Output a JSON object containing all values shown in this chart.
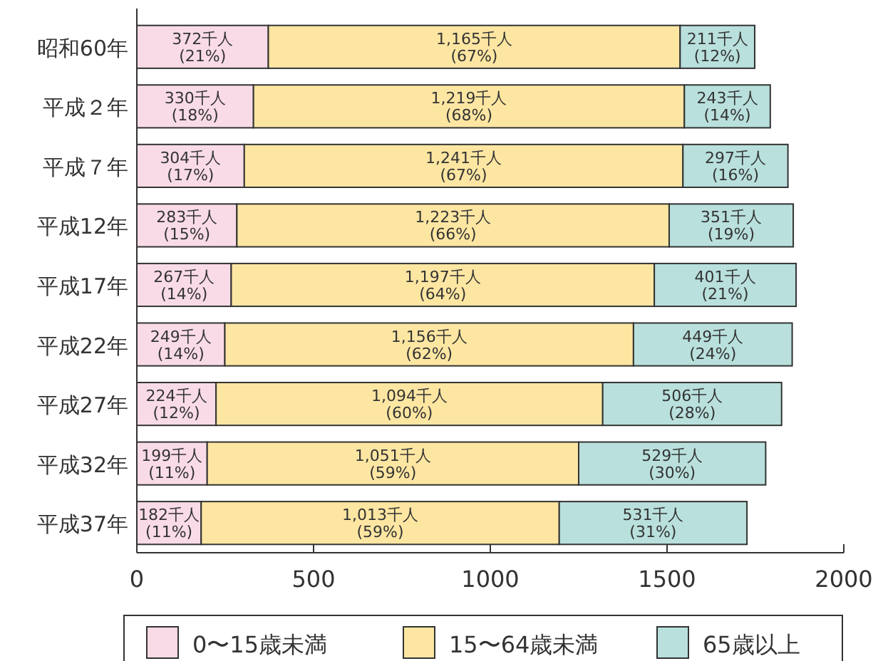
{
  "chart_data": {
    "type": "bar",
    "orientation": "horizontal",
    "stacked": true,
    "categories": [
      "昭和60年",
      "平成２年",
      "平成７年",
      "平成12年",
      "平成17年",
      "平成22年",
      "平成27年",
      "平成32年",
      "平成37年"
    ],
    "series": [
      {
        "name": "0〜15歳未満",
        "color": "#f9dbe7",
        "values": [
          372,
          330,
          304,
          283,
          267,
          249,
          224,
          199,
          182
        ],
        "value_labels": [
          "372千人\n(21%)",
          "330千人\n(18%)",
          "304千人\n(17%)",
          "283千人\n(15%)",
          "267千人\n(14%)",
          "249千人\n(14%)",
          "224千人\n(12%)",
          "199千人\n(11%)",
          "182千人\n(11%)"
        ]
      },
      {
        "name": "15〜64歳未満",
        "color": "#fde6a2",
        "values": [
          1165,
          1219,
          1241,
          1223,
          1197,
          1156,
          1094,
          1051,
          1013
        ],
        "value_labels": [
          "1,165千人\n(67%)",
          "1,219千人\n(68%)",
          "1,241千人\n(67%)",
          "1,223千人\n(66%)",
          "1,197千人\n(64%)",
          "1,156千人\n(62%)",
          "1,094千人\n(60%)",
          "1,051千人\n(59%)",
          "1,013千人\n(59%)"
        ]
      },
      {
        "name": "65歳以上",
        "color": "#b9e0dc",
        "values": [
          211,
          243,
          297,
          351,
          401,
          449,
          506,
          529,
          531
        ],
        "value_labels": [
          "211千人\n(12%)",
          "243千人\n(14%)",
          "297千人\n(16%)",
          "351千人\n(19%)",
          "401千人\n(21%)",
          "449千人\n(24%)",
          "506千人\n(28%)",
          "529千人\n(30%)",
          "531千人\n(31%)"
        ]
      }
    ],
    "xlim": [
      0,
      2000
    ],
    "xticks": [
      0,
      500,
      1000,
      1500,
      2000
    ],
    "grid": false,
    "legend": "bottom"
  }
}
